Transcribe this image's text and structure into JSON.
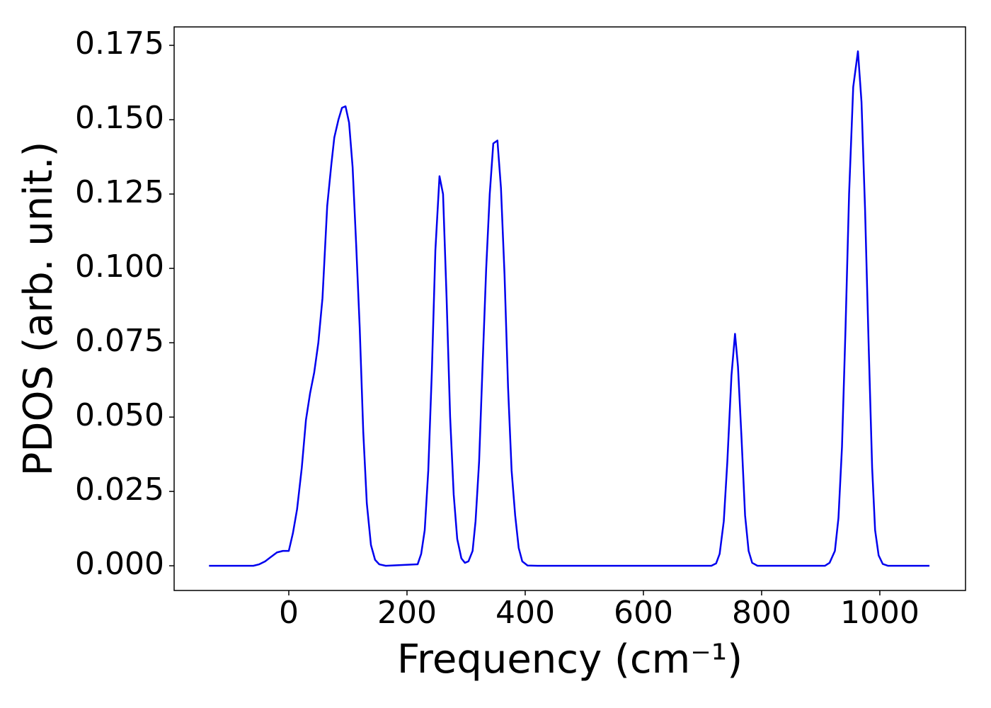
{
  "chart_data": {
    "type": "line",
    "xlabel": "Frequency (cm⁻¹)",
    "ylabel": "PDOS (arb. unit.)",
    "x": [
      -135,
      -60,
      -50,
      -40,
      -30,
      -20,
      -10,
      0,
      7,
      14,
      22,
      29,
      36,
      43,
      50,
      57,
      65,
      72,
      77,
      84,
      90,
      96,
      102,
      108,
      114,
      120,
      126,
      132,
      139,
      146,
      153,
      164,
      218,
      224,
      230,
      236,
      242,
      248,
      255,
      261,
      267,
      273,
      279,
      285,
      292,
      298,
      304,
      311,
      316,
      322,
      328,
      334,
      340,
      346,
      353,
      359,
      365,
      371,
      377,
      383,
      389,
      395,
      404,
      421,
      715,
      723,
      729,
      736,
      742,
      749,
      755,
      760,
      766,
      772,
      778,
      784,
      793,
      907,
      915,
      924,
      930,
      936,
      942,
      948,
      955,
      963,
      969,
      975,
      981,
      987,
      992,
      998,
      1005,
      1014,
      1084
    ],
    "series": [
      {
        "name": "PDOS",
        "color": "#0000ee",
        "values": [
          0,
          0,
          0.0005,
          0.0015,
          0.003,
          0.0045,
          0.005,
          0.005,
          0.011,
          0.019,
          0.033,
          0.049,
          0.058,
          0.065,
          0.075,
          0.09,
          0.121,
          0.135,
          0.144,
          0.15,
          0.154,
          0.1545,
          0.149,
          0.134,
          0.108,
          0.08,
          0.045,
          0.021,
          0.007,
          0.002,
          0.0005,
          0,
          0.0005,
          0.004,
          0.012,
          0.032,
          0.065,
          0.106,
          0.131,
          0.125,
          0.09,
          0.05,
          0.024,
          0.009,
          0.0025,
          0.001,
          0.0015,
          0.005,
          0.015,
          0.035,
          0.068,
          0.1,
          0.125,
          0.142,
          0.143,
          0.127,
          0.098,
          0.06,
          0.032,
          0.017,
          0.006,
          0.0015,
          0.0001,
          0,
          0,
          0.0008,
          0.004,
          0.015,
          0.035,
          0.064,
          0.078,
          0.067,
          0.043,
          0.017,
          0.005,
          0.001,
          0,
          0,
          0.001,
          0.005,
          0.016,
          0.04,
          0.08,
          0.125,
          0.161,
          0.173,
          0.156,
          0.12,
          0.075,
          0.033,
          0.012,
          0.0035,
          0.0006,
          0,
          0
        ]
      }
    ],
    "xlim": [
      -194,
      1145
    ],
    "xticks": [
      0,
      200,
      400,
      600,
      800,
      1000
    ],
    "ylim": [
      -0.0083,
      0.1812
    ],
    "yticks": [
      {
        "value": 0,
        "label": "0.000"
      },
      {
        "value": 0.025,
        "label": "0.025"
      },
      {
        "value": 0.05,
        "label": "0.050"
      },
      {
        "value": 0.075,
        "label": "0.075"
      },
      {
        "value": 0.1,
        "label": "0.100"
      },
      {
        "value": 0.125,
        "label": "0.125"
      },
      {
        "value": 0.15,
        "label": "0.150"
      },
      {
        "value": 0.175,
        "label": "0.175"
      }
    ]
  }
}
